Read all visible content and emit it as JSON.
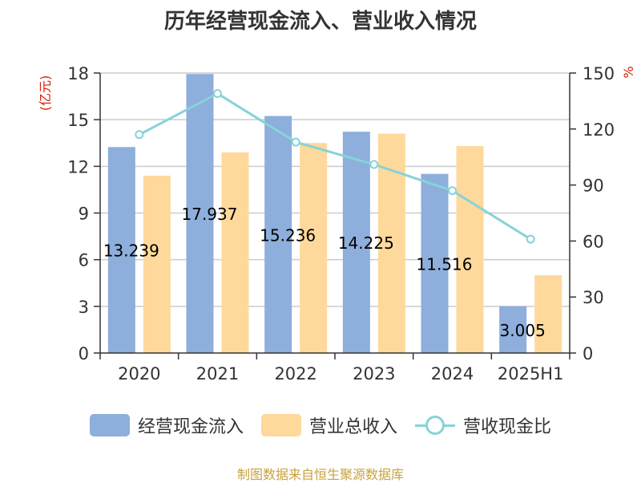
{
  "title": "历年经营现金流入、营业收入情况",
  "source": "制图数据来自恒生聚源数据库",
  "chart_data": {
    "type": "bar",
    "categories": [
      "2020",
      "2021",
      "2022",
      "2023",
      "2024",
      "2025H1"
    ],
    "series": [
      {
        "name": "经营现金流入",
        "type": "bar",
        "axis": "left",
        "color": "#8eaedb",
        "values": [
          13.239,
          17.937,
          15.236,
          14.225,
          11.516,
          3.005
        ],
        "labels": [
          "13.239",
          "17.937",
          "15.236",
          "14.225",
          "11.516",
          "3.005"
        ]
      },
      {
        "name": "营业总收入",
        "type": "bar",
        "axis": "left",
        "color": "#fed99b",
        "values": [
          11.4,
          12.9,
          13.5,
          14.1,
          13.3,
          5.0
        ]
      },
      {
        "name": "营收现金比",
        "type": "line",
        "axis": "right",
        "color": "#86d3d8",
        "values": [
          117,
          139,
          113,
          101,
          87,
          61
        ]
      }
    ],
    "left_axis": {
      "unit": "(亿元)",
      "ylim": [
        0,
        18
      ],
      "ticks": [
        0,
        3,
        6,
        9,
        12,
        15,
        18
      ]
    },
    "right_axis": {
      "unit": "%",
      "ylim": [
        0,
        150
      ],
      "ticks": [
        0,
        30,
        60,
        90,
        120,
        150
      ]
    },
    "grid": true,
    "legend_position": "bottom"
  }
}
